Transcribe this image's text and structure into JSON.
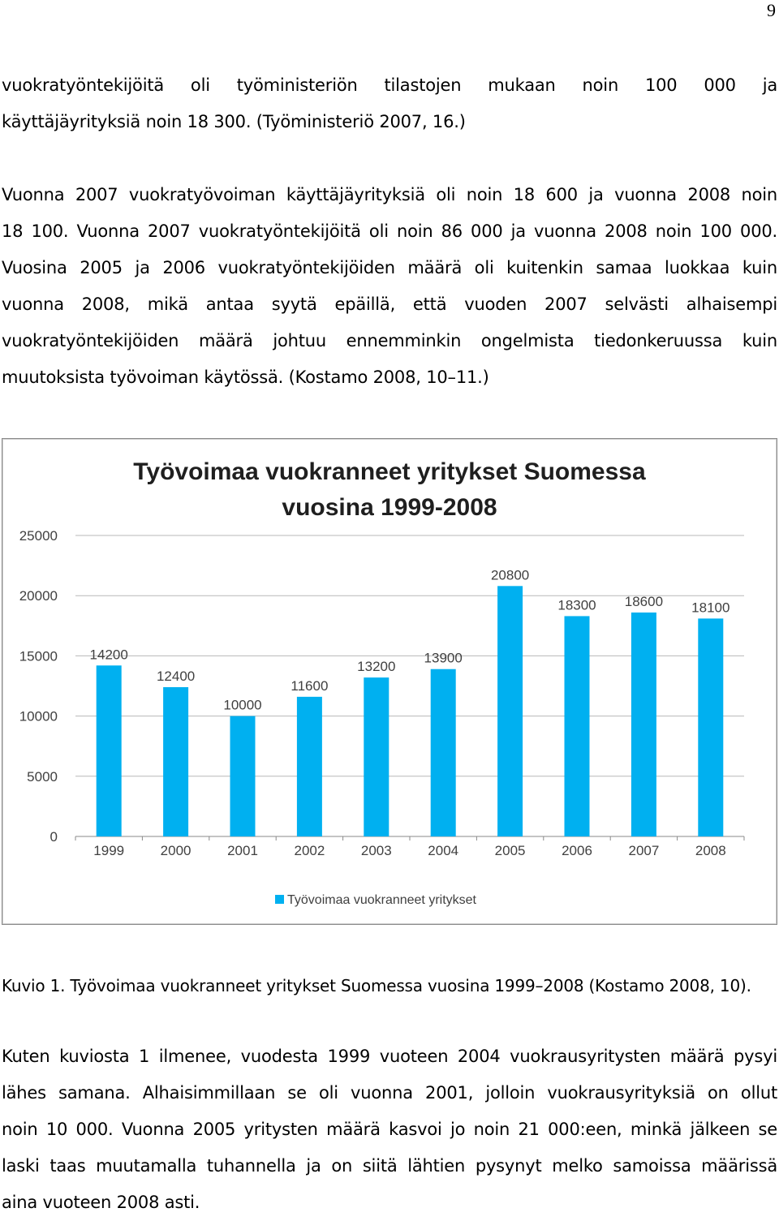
{
  "page_number": "9",
  "paragraph1": {
    "lines": [
      "vuokratyöntekijöitä oli työministeriön tilastojen mukaan noin 100 000 ja",
      "käyttäjäyrityksiä noin 18 300. (Työministeriö 2007, 16.)"
    ]
  },
  "paragraph2": {
    "lines": [
      "Vuonna 2007 vuokratyövoiman käyttäjäyrityksiä oli noin 18 600 ja vuonna 2008 noin",
      "18 100. Vuonna 2007 vuokratyöntekijöitä oli noin 86 000 ja vuonna 2008 noin 100 000.",
      "Vuosina 2005 ja 2006 vuokratyöntekijöiden määrä oli kuitenkin samaa luokkaa kuin",
      "vuonna 2008, mikä antaa syytä epäillä, että vuoden 2007 selvästi alhaisempi",
      "vuokratyöntekijöiden määrä johtuu ennemminkin ongelmista tiedonkeruussa kuin",
      "muutoksista työvoiman käytössä. (Kostamo 2008, 10–11.)"
    ]
  },
  "chart_data": {
    "type": "bar",
    "title_lines": [
      "Työvoimaa vuokranneet yritykset Suomessa",
      "vuosina 1999-2008"
    ],
    "categories": [
      "1999",
      "2000",
      "2001",
      "2002",
      "2003",
      "2004",
      "2005",
      "2006",
      "2007",
      "2008"
    ],
    "series": [
      {
        "name": "Työvoimaa vuokranneet yritykset",
        "values": [
          14200,
          12400,
          10000,
          11600,
          13200,
          13900,
          20800,
          18300,
          18600,
          18100
        ]
      }
    ],
    "ylim": [
      0,
      25000
    ],
    "yticks": [
      "0",
      "5000",
      "10000",
      "15000",
      "20000",
      "25000"
    ],
    "grid": true,
    "legend_position": "bottom",
    "bar_color": "#00b0f0"
  },
  "caption": "Kuvio 1. Työvoimaa vuokranneet yritykset Suomessa vuosina 1999–2008 (Kostamo 2008, 10).",
  "paragraph3": {
    "lines": [
      "Kuten kuviosta 1 ilmenee, vuodesta 1999 vuoteen 2004 vuokrausyritysten määrä pysyi",
      "lähes samana. Alhaisimmillaan se oli vuonna 2001, jolloin vuokrausyrityksiä on ollut",
      "noin 10 000. Vuonna 2005 yritysten määrä kasvoi jo noin 21 000:een, minkä jälkeen se",
      "laski taas muutamalla tuhannella ja on siitä lähtien pysynyt melko samoissa määrissä",
      "aina vuoteen 2008 asti."
    ]
  }
}
